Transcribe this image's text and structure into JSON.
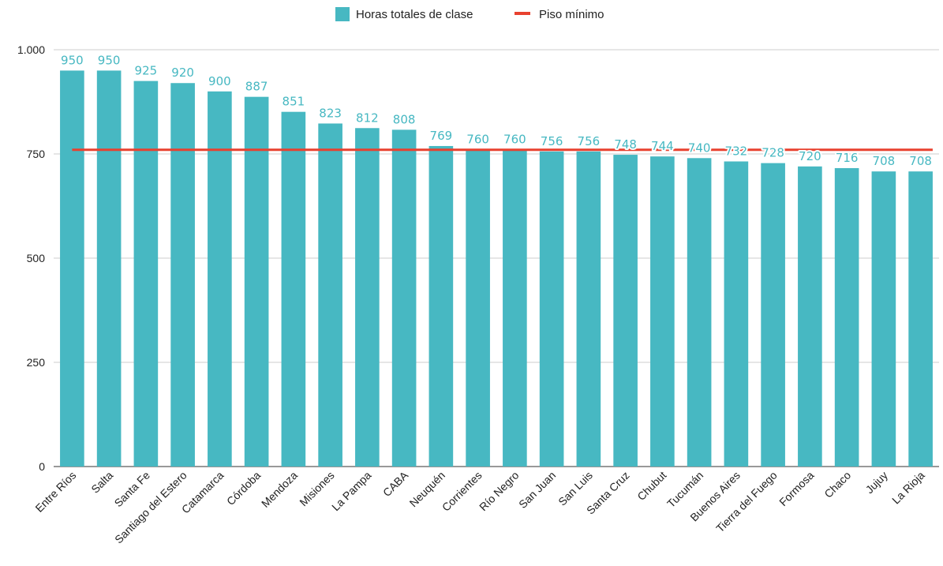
{
  "chart_data": {
    "type": "bar",
    "categories": [
      "Entre Ríos",
      "Salta",
      "Santa Fe",
      "Santiago del Estero",
      "Catamarca",
      "Córdoba",
      "Mendoza",
      "Misiones",
      "La Pampa",
      "CABA",
      "Neuquén",
      "Corrientes",
      "Río Negro",
      "San Juan",
      "San Luis",
      "Santa Cruz",
      "Chubut",
      "Tucumán",
      "Buenos Aires",
      "Tierra del Fuego",
      "Formosa",
      "Chaco",
      "Jujuy",
      "La Rioja"
    ],
    "series": [
      {
        "name": "Horas totales de clase",
        "type": "bar",
        "values": [
          950,
          950,
          925,
          920,
          900,
          887,
          851,
          823,
          812,
          808,
          769,
          760,
          760,
          756,
          756,
          748,
          744,
          740,
          732,
          728,
          720,
          716,
          708,
          708
        ]
      },
      {
        "name": "Piso mínimo",
        "type": "line",
        "values": [
          760,
          760,
          760,
          760,
          760,
          760,
          760,
          760,
          760,
          760,
          760,
          760,
          760,
          760,
          760,
          760,
          760,
          760,
          760,
          760,
          760,
          760,
          760,
          760
        ]
      }
    ],
    "value_labels": [
      "950",
      "950",
      "925",
      "920",
      "900",
      "887",
      "851",
      "823",
      "812",
      "808",
      "769",
      "760",
      "760",
      "756",
      "756",
      "748",
      "744",
      "740",
      "732",
      "728",
      "720",
      "716",
      "708",
      "708"
    ],
    "ylim": [
      0,
      1000
    ],
    "yticks": [
      0,
      250,
      500,
      750,
      1000
    ],
    "ytick_labels": [
      "0",
      "250",
      "500",
      "750",
      "1.000"
    ],
    "grid": true,
    "legend_position": "top-center",
    "colors": {
      "bar": "#47b8c2",
      "line": "#e8412f",
      "value_label": "#47b8c2",
      "grid": "#cccccc",
      "axis": "#333333"
    }
  }
}
